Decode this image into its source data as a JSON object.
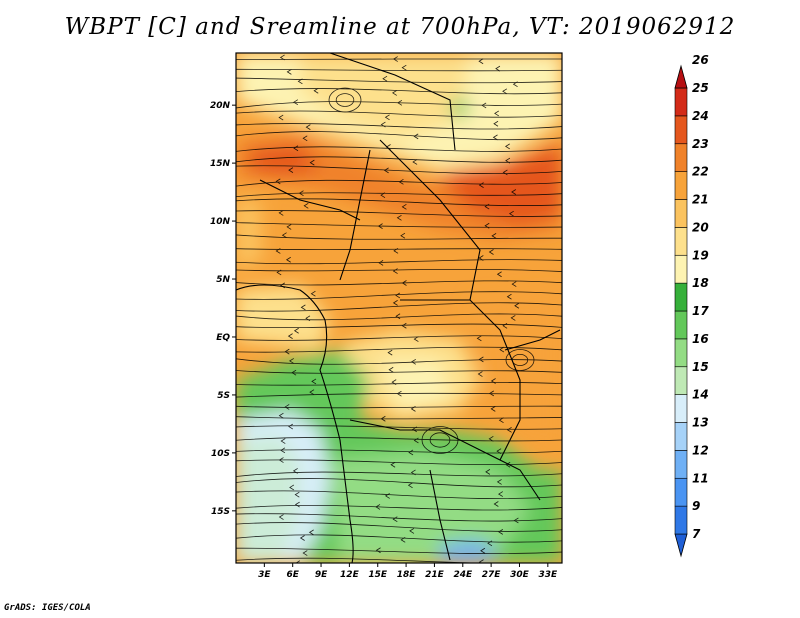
{
  "title": "WBPT [C] and Sreamline at 700hPa, VT: 2019062912",
  "credit": "GrADS: IGES/COLA",
  "map": {
    "lat_labels": [
      "20N",
      "15N",
      "10N",
      "5N",
      "EQ",
      "5S",
      "10S",
      "15S"
    ],
    "lat_values": [
      20,
      15,
      10,
      5,
      0,
      -5,
      -10,
      -15
    ],
    "lon_labels": [
      "3E",
      "6E",
      "9E",
      "12E",
      "15E",
      "18E",
      "21E",
      "24E",
      "27E",
      "30E",
      "33E"
    ],
    "lon_values": [
      3,
      6,
      9,
      12,
      15,
      18,
      21,
      24,
      27,
      30,
      33
    ],
    "lon_range": [
      0,
      34.5
    ],
    "lat_range": [
      -19.5,
      24.5
    ]
  },
  "colorbar": {
    "labels": [
      "7",
      "9",
      "11",
      "12",
      "13",
      "14",
      "15",
      "16",
      "17",
      "18",
      "19",
      "20",
      "21",
      "22",
      "23",
      "24",
      "25",
      "26"
    ],
    "colors": [
      "#1f5fd6",
      "#2f78e6",
      "#4a94f2",
      "#6fb0f5",
      "#a6d2f8",
      "#d8eefa",
      "#bfe9b5",
      "#93dc84",
      "#63c85a",
      "#36b03a",
      "#fdf3b2",
      "#fde08c",
      "#fbc35f",
      "#f7a33a",
      "#f0822a",
      "#e5571e",
      "#d32b18",
      "#b60f12"
    ]
  }
}
